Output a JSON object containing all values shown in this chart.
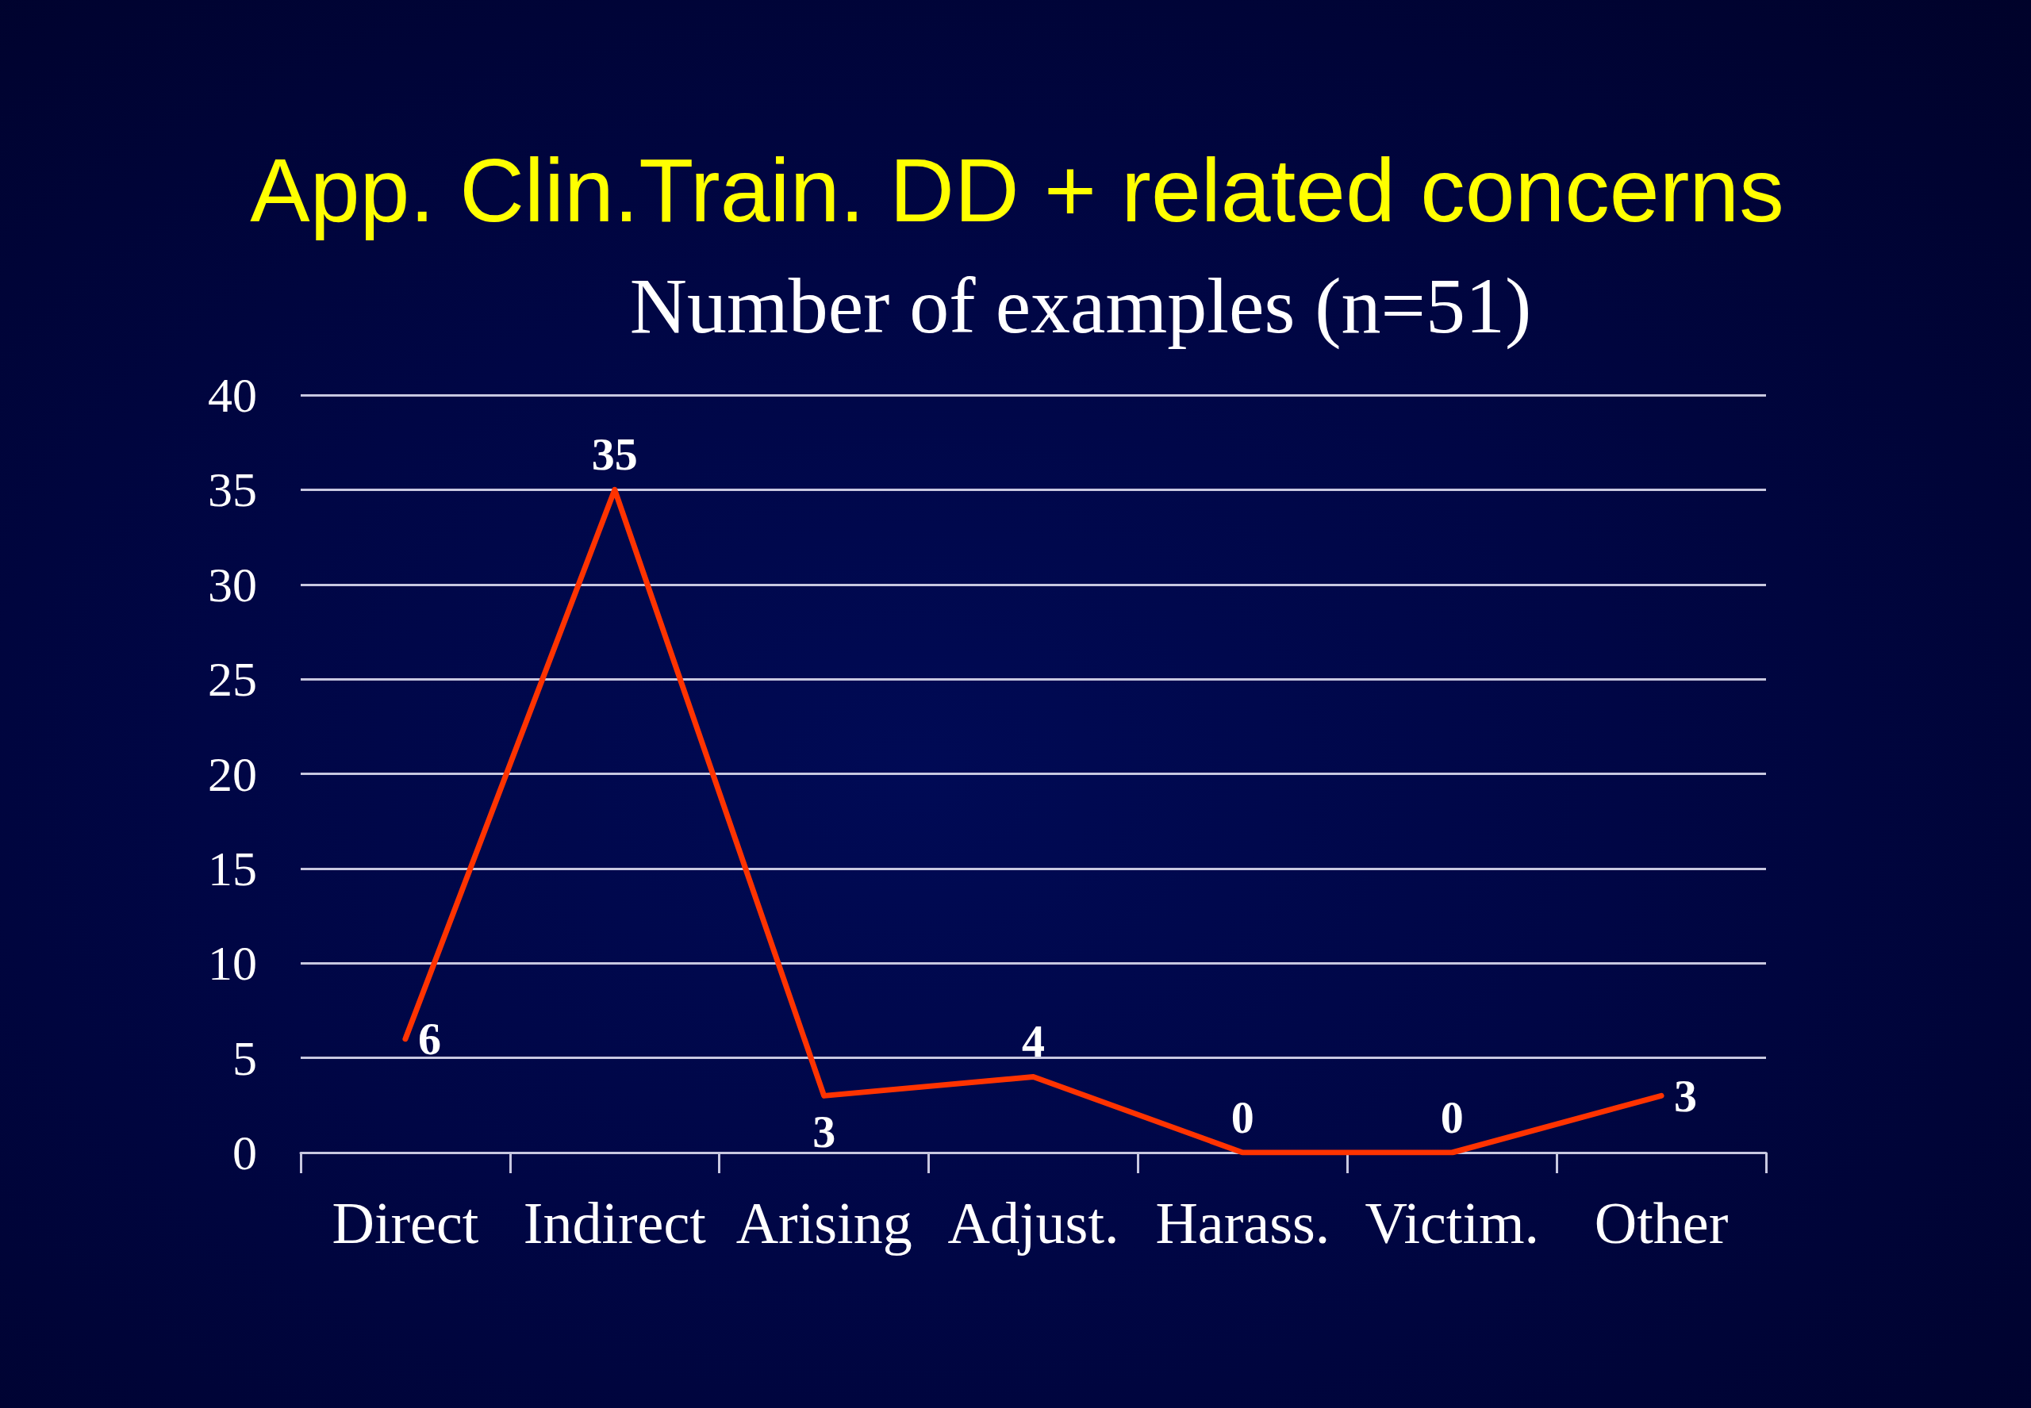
{
  "chart_data": {
    "type": "line",
    "title": "App. Clin.Train. DD + related concerns",
    "subtitle": "Number of examples (n=51)",
    "categories": [
      "Direct",
      "Indirect",
      "Arising",
      "Adjust.",
      "Harass.",
      "Victim.",
      "Other"
    ],
    "values": [
      6,
      35,
      3,
      4,
      0,
      0,
      3
    ],
    "color": "#ff3300",
    "ylim": [
      0,
      40
    ],
    "yticks": [
      0,
      5,
      10,
      15,
      20,
      25,
      30,
      35,
      40
    ],
    "grid": "y",
    "data_labels": true,
    "marker": "none",
    "line_style": "solid"
  }
}
